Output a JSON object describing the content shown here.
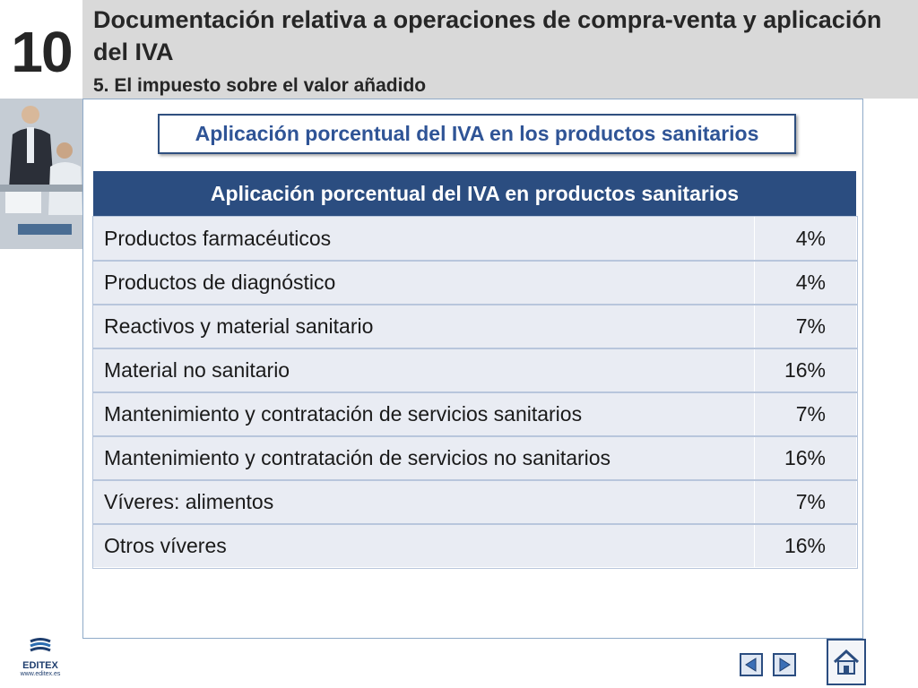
{
  "header": {
    "chapter_number": "10",
    "title": "Documentación relativa a operaciones de compra-venta y aplicación del IVA",
    "subtitle": "5. El impuesto sobre el valor añadido"
  },
  "banner": {
    "label": "Aplicación porcentual del IVA en los productos sanitarios"
  },
  "table": {
    "header": "Aplicación porcentual del IVA en productos sanitarios",
    "rows": [
      {
        "product": "Productos farmacéuticos",
        "rate": "4%"
      },
      {
        "product": "Productos de diagnóstico",
        "rate": "4%"
      },
      {
        "product": "Reactivos y material sanitario",
        "rate": "7%"
      },
      {
        "product": "Material no sanitario",
        "rate": "16%"
      },
      {
        "product": "Mantenimiento y contratación de servicios sanitarios",
        "rate": "7%"
      },
      {
        "product": "Mantenimiento y contratación de servicios no sanitarios",
        "rate": "16%"
      },
      {
        "product": "Víveres: alimentos",
        "rate": "7%"
      },
      {
        "product": "Otros víveres",
        "rate": "16%"
      }
    ]
  },
  "footer": {
    "logo_name": "EDITEX",
    "logo_url": "www.editex.es",
    "prev_icon": "triangle-left-icon",
    "next_icon": "triangle-right-icon",
    "home_icon": "home-icon"
  },
  "colors": {
    "header_band": "#d9d9d9",
    "accent_blue": "#2b4d80",
    "banner_text": "#2f5496",
    "row_fill": "#e9ecf3"
  }
}
